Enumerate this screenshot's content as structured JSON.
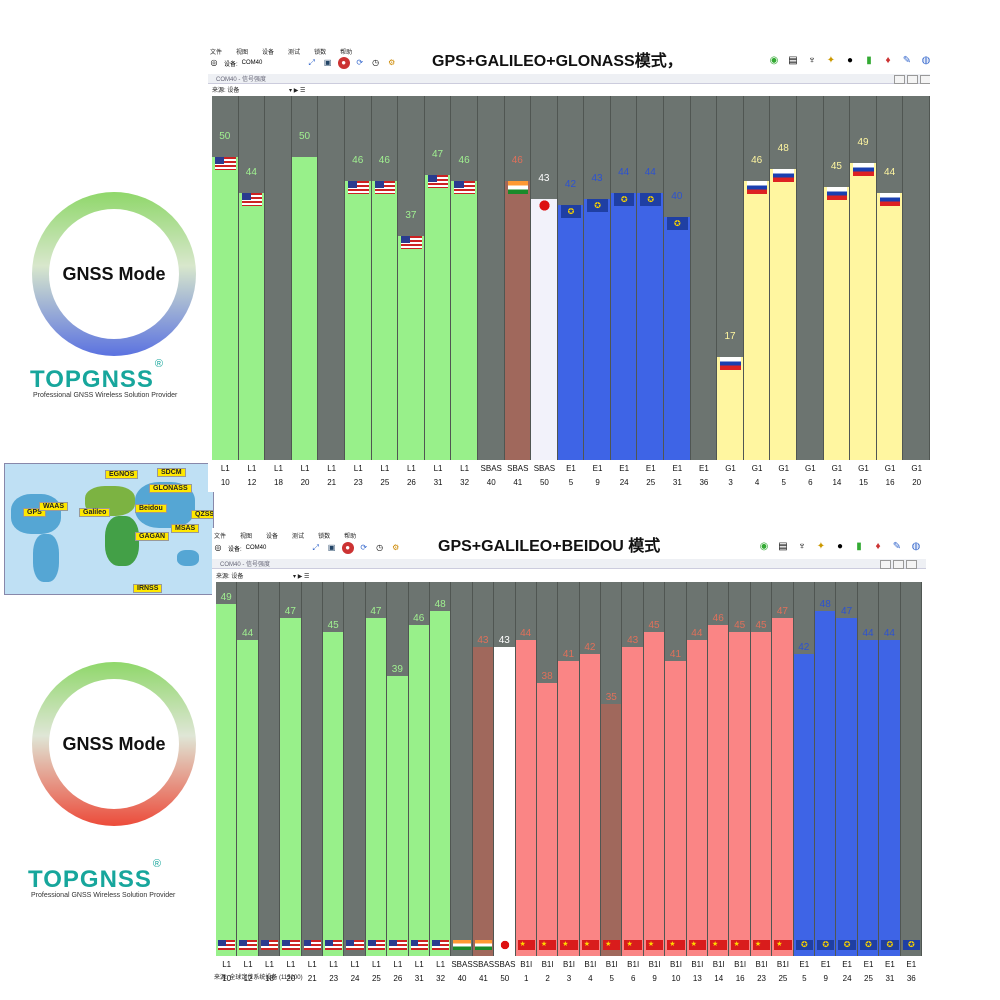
{
  "promo": {
    "ring_label": "GNSS Mode",
    "brand": "TOPGNSS",
    "registered": "®",
    "tagline": "Professional GNSS Wireless Solution Provider"
  },
  "map": {
    "labels": [
      "GPS",
      "Galileo",
      "GLONASS",
      "Beidou",
      "QZSS",
      "IRNSS",
      "EGNOS",
      "WAAS",
      "GAGAN",
      "MSAS",
      "SDCM"
    ]
  },
  "app": {
    "menu": [
      "文件",
      "视图",
      "设备",
      "测试",
      "锁数",
      "帮助"
    ],
    "device_label": "设备:",
    "device_value": "COM40",
    "panel_title": "COM40 - 信号强度",
    "source_label": "来源:",
    "source_value": "设备",
    "status_text": "来源: 全球定位系统设备 (115200)"
  },
  "panel1": {
    "title": "GPS+GALILEO+GLONASS模式，",
    "chart_data": {
      "type": "bar",
      "ylim": [
        0,
        60
      ],
      "columns": [
        {
          "sys": "L1",
          "prn": "10",
          "value": 50,
          "color": "#98f08a",
          "flag": "us"
        },
        {
          "sys": "L1",
          "prn": "12",
          "value": 44,
          "color": "#98f08a",
          "flag": "us"
        },
        {
          "sys": "L1",
          "prn": "18",
          "value": null,
          "color": "",
          "flag": ""
        },
        {
          "sys": "L1",
          "prn": "20",
          "value": 50,
          "color": "#98f08a",
          "flag": ""
        },
        {
          "sys": "L1",
          "prn": "21",
          "value": null,
          "color": "",
          "flag": ""
        },
        {
          "sys": "L1",
          "prn": "23",
          "value": 46,
          "color": "#98f08a",
          "flag": "us"
        },
        {
          "sys": "L1",
          "prn": "25",
          "value": 46,
          "color": "#98f08a",
          "flag": "us"
        },
        {
          "sys": "L1",
          "prn": "26",
          "value": 37,
          "color": "#98f08a",
          "flag": "us"
        },
        {
          "sys": "L1",
          "prn": "31",
          "value": 47,
          "color": "#98f08a",
          "flag": "us"
        },
        {
          "sys": "L1",
          "prn": "32",
          "value": 46,
          "color": "#98f08a",
          "flag": "us"
        },
        {
          "sys": "SBAS",
          "prn": "40",
          "value": null,
          "color": "",
          "flag": ""
        },
        {
          "sys": "SBAS",
          "prn": "41",
          "value": 46,
          "color": "#a0685c",
          "flag": "in"
        },
        {
          "sys": "SBAS",
          "prn": "50",
          "value": 43,
          "color": "#f2f2fa",
          "flag": "jp"
        },
        {
          "sys": "E1",
          "prn": "5",
          "value": 42,
          "color": "#3e64e6",
          "flag": "eu"
        },
        {
          "sys": "E1",
          "prn": "9",
          "value": 43,
          "color": "#3e64e6",
          "flag": "eu"
        },
        {
          "sys": "E1",
          "prn": "24",
          "value": 44,
          "color": "#3e64e6",
          "flag": "eu"
        },
        {
          "sys": "E1",
          "prn": "25",
          "value": 44,
          "color": "#3e64e6",
          "flag": "eu"
        },
        {
          "sys": "E1",
          "prn": "31",
          "value": 40,
          "color": "#3e64e6",
          "flag": "eu"
        },
        {
          "sys": "E1",
          "prn": "36",
          "value": null,
          "color": "",
          "flag": ""
        },
        {
          "sys": "G1",
          "prn": "3",
          "value": 17,
          "color": "#fff6a0",
          "flag": "ru"
        },
        {
          "sys": "G1",
          "prn": "4",
          "value": 46,
          "color": "#fff6a0",
          "flag": "ru"
        },
        {
          "sys": "G1",
          "prn": "5",
          "value": 48,
          "color": "#fff6a0",
          "flag": "ru"
        },
        {
          "sys": "G1",
          "prn": "6",
          "value": null,
          "color": "",
          "flag": ""
        },
        {
          "sys": "G1",
          "prn": "14",
          "value": 45,
          "color": "#fff6a0",
          "flag": "ru"
        },
        {
          "sys": "G1",
          "prn": "15",
          "value": 49,
          "color": "#fff6a0",
          "flag": "ru"
        },
        {
          "sys": "G1",
          "prn": "16",
          "value": 44,
          "color": "#fff6a0",
          "flag": "ru"
        },
        {
          "sys": "G1",
          "prn": "20",
          "value": null,
          "color": "",
          "flag": ""
        }
      ]
    }
  },
  "panel2": {
    "title": "GPS+GALILEO+BEIDOU  模式",
    "chart_data": {
      "type": "bar",
      "ylim": [
        0,
        52
      ],
      "columns": [
        {
          "sys": "L1",
          "prn": "10",
          "value": 49,
          "color": "#98f08a",
          "flag": "us"
        },
        {
          "sys": "L1",
          "prn": "12",
          "value": 44,
          "color": "#98f08a",
          "flag": "us"
        },
        {
          "sys": "L1",
          "prn": "18",
          "value": null,
          "color": "",
          "flag": "us"
        },
        {
          "sys": "L1",
          "prn": "20",
          "value": 47,
          "color": "#98f08a",
          "flag": "us"
        },
        {
          "sys": "L1",
          "prn": "21",
          "value": null,
          "color": "",
          "flag": "us"
        },
        {
          "sys": "L1",
          "prn": "23",
          "value": 45,
          "color": "#98f08a",
          "flag": "us"
        },
        {
          "sys": "L1",
          "prn": "24",
          "value": null,
          "color": "",
          "flag": "us"
        },
        {
          "sys": "L1",
          "prn": "25",
          "value": 47,
          "color": "#98f08a",
          "flag": "us"
        },
        {
          "sys": "L1",
          "prn": "26",
          "value": 39,
          "color": "#98f08a",
          "flag": "us"
        },
        {
          "sys": "L1",
          "prn": "31",
          "value": 46,
          "color": "#98f08a",
          "flag": "us"
        },
        {
          "sys": "L1",
          "prn": "32",
          "value": 48,
          "color": "#98f08a",
          "flag": "us"
        },
        {
          "sys": "SBAS",
          "prn": "40",
          "value": null,
          "color": "",
          "flag": "in"
        },
        {
          "sys": "SBAS",
          "prn": "41",
          "value": 43,
          "color": "#a0685c",
          "flag": "in"
        },
        {
          "sys": "SBAS",
          "prn": "50",
          "value": 43,
          "color": "#ffffff",
          "flag": "jp"
        },
        {
          "sys": "B1I",
          "prn": "1",
          "value": 44,
          "color": "#fa8585",
          "flag": "cn"
        },
        {
          "sys": "B1I",
          "prn": "2",
          "value": 38,
          "color": "#fa8585",
          "flag": "cn"
        },
        {
          "sys": "B1I",
          "prn": "3",
          "value": 41,
          "color": "#fa8585",
          "flag": "cn"
        },
        {
          "sys": "B1I",
          "prn": "4",
          "value": 42,
          "color": "#fa8585",
          "flag": "cn"
        },
        {
          "sys": "B1I",
          "prn": "5",
          "value": 35,
          "color": "#a0685c",
          "flag": "cn"
        },
        {
          "sys": "B1I",
          "prn": "6",
          "value": 43,
          "color": "#fa8585",
          "flag": "cn"
        },
        {
          "sys": "B1I",
          "prn": "9",
          "value": 45,
          "color": "#fa8585",
          "flag": "cn"
        },
        {
          "sys": "B1I",
          "prn": "10",
          "value": 41,
          "color": "#fa8585",
          "flag": "cn"
        },
        {
          "sys": "B1I",
          "prn": "13",
          "value": 44,
          "color": "#fa8585",
          "flag": "cn"
        },
        {
          "sys": "B1I",
          "prn": "14",
          "value": 46,
          "color": "#fa8585",
          "flag": "cn"
        },
        {
          "sys": "B1I",
          "prn": "16",
          "value": 45,
          "color": "#fa8585",
          "flag": "cn"
        },
        {
          "sys": "B1I",
          "prn": "23",
          "value": 45,
          "color": "#fa8585",
          "flag": "cn"
        },
        {
          "sys": "B1I",
          "prn": "25",
          "value": 47,
          "color": "#fa8585",
          "flag": "cn"
        },
        {
          "sys": "E1",
          "prn": "5",
          "value": 42,
          "color": "#3e64e6",
          "flag": "eu"
        },
        {
          "sys": "E1",
          "prn": "9",
          "value": 48,
          "color": "#3e64e6",
          "flag": "eu"
        },
        {
          "sys": "E1",
          "prn": "24",
          "value": 47,
          "color": "#3e64e6",
          "flag": "eu"
        },
        {
          "sys": "E1",
          "prn": "25",
          "value": 44,
          "color": "#3e64e6",
          "flag": "eu"
        },
        {
          "sys": "E1",
          "prn": "31",
          "value": 44,
          "color": "#3e64e6",
          "flag": "eu"
        },
        {
          "sys": "E1",
          "prn": "36",
          "value": null,
          "color": "",
          "flag": "eu"
        }
      ]
    }
  }
}
